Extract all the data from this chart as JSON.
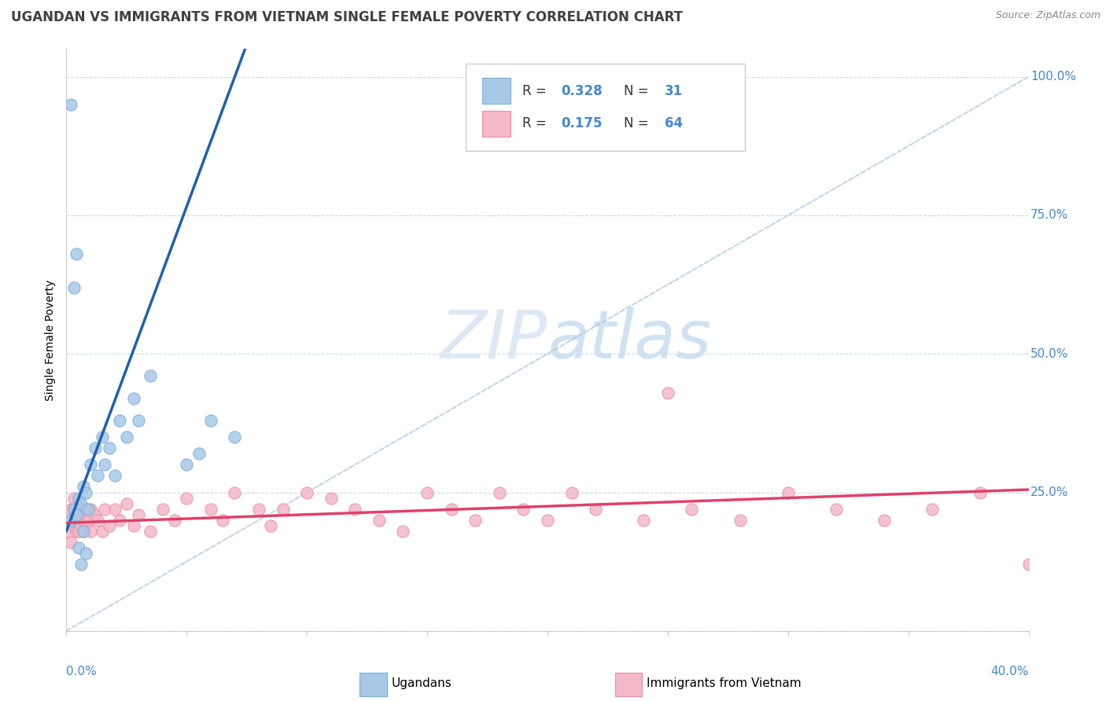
{
  "title": "UGANDAN VS IMMIGRANTS FROM VIETNAM SINGLE FEMALE POVERTY CORRELATION CHART",
  "source": "Source: ZipAtlas.com",
  "ylabel": "Single Female Poverty",
  "xrange": [
    0.0,
    0.4
  ],
  "yrange": [
    0.0,
    1.05
  ],
  "yticks": [
    0.0,
    0.25,
    0.5,
    0.75,
    1.0
  ],
  "ytick_labels": [
    "",
    "25.0%",
    "50.0%",
    "75.0%",
    "100.0%"
  ],
  "blue_color": "#a8c8e8",
  "pink_color": "#f4b8c8",
  "blue_edge": "#7aaed4",
  "pink_edge": "#e890a8",
  "blue_line_color": "#2060b0",
  "pink_line_color": "#e0406a",
  "diag_line_color": "#b0c8e0",
  "tick_color": "#4488cc",
  "watermark_color": "#dde8f4",
  "title_fontsize": 12,
  "source_fontsize": 9,
  "tick_fontsize": 11,
  "ylabel_fontsize": 10,
  "legend_fontsize": 12,
  "marker_size": 120,
  "ugandan_x": [
    0.002,
    0.003,
    0.004,
    0.005,
    0.006,
    0.007,
    0.008,
    0.009,
    0.01,
    0.012,
    0.013,
    0.015,
    0.016,
    0.018,
    0.02,
    0.022,
    0.025,
    0.028,
    0.03,
    0.035,
    0.05,
    0.055,
    0.06,
    0.07,
    0.003,
    0.004,
    0.005,
    0.006,
    0.007,
    0.008,
    0.002
  ],
  "ugandan_y": [
    0.2,
    0.22,
    0.21,
    0.24,
    0.23,
    0.26,
    0.25,
    0.22,
    0.3,
    0.33,
    0.28,
    0.35,
    0.3,
    0.33,
    0.28,
    0.38,
    0.35,
    0.42,
    0.38,
    0.46,
    0.3,
    0.32,
    0.38,
    0.35,
    0.62,
    0.68,
    0.15,
    0.12,
    0.18,
    0.14,
    0.95
  ],
  "vietnam_x": [
    0.001,
    0.002,
    0.002,
    0.002,
    0.003,
    0.003,
    0.003,
    0.004,
    0.004,
    0.005,
    0.005,
    0.005,
    0.006,
    0.006,
    0.007,
    0.007,
    0.008,
    0.008,
    0.009,
    0.01,
    0.01,
    0.012,
    0.013,
    0.015,
    0.016,
    0.018,
    0.02,
    0.022,
    0.025,
    0.028,
    0.03,
    0.035,
    0.04,
    0.045,
    0.05,
    0.06,
    0.065,
    0.07,
    0.08,
    0.085,
    0.09,
    0.1,
    0.11,
    0.12,
    0.13,
    0.14,
    0.15,
    0.16,
    0.17,
    0.18,
    0.19,
    0.2,
    0.21,
    0.22,
    0.24,
    0.25,
    0.26,
    0.28,
    0.3,
    0.32,
    0.34,
    0.36,
    0.38,
    0.4
  ],
  "vietnam_y": [
    0.18,
    0.2,
    0.22,
    0.16,
    0.19,
    0.22,
    0.24,
    0.18,
    0.2,
    0.22,
    0.18,
    0.2,
    0.19,
    0.22,
    0.2,
    0.18,
    0.22,
    0.19,
    0.2,
    0.22,
    0.18,
    0.21,
    0.2,
    0.18,
    0.22,
    0.19,
    0.22,
    0.2,
    0.23,
    0.19,
    0.21,
    0.18,
    0.22,
    0.2,
    0.24,
    0.22,
    0.2,
    0.25,
    0.22,
    0.19,
    0.22,
    0.25,
    0.24,
    0.22,
    0.2,
    0.18,
    0.25,
    0.22,
    0.2,
    0.25,
    0.22,
    0.2,
    0.25,
    0.22,
    0.2,
    0.43,
    0.22,
    0.2,
    0.25,
    0.22,
    0.2,
    0.22,
    0.25,
    0.12
  ],
  "blue_line_x0": 0.0,
  "blue_line_y0": 0.18,
  "blue_line_x1": 0.07,
  "blue_line_y1": 1.0,
  "pink_line_x0": 0.0,
  "pink_line_y0": 0.195,
  "pink_line_x1": 0.4,
  "pink_line_y1": 0.255
}
